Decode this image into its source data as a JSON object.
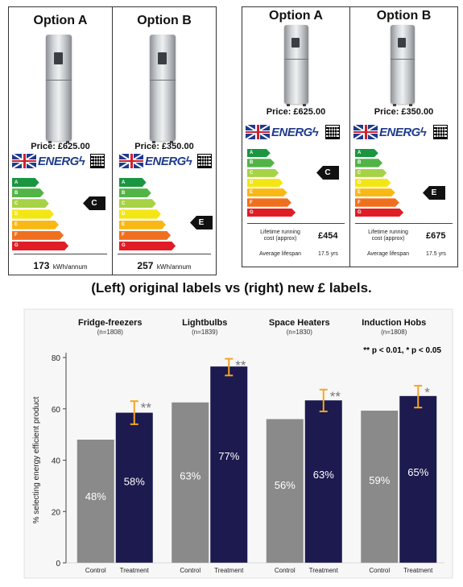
{
  "left_panel": {
    "options": [
      {
        "title": "Option A",
        "price": "Price: £625.00",
        "energy_logo": "ENERG",
        "rating": "C",
        "kwh": "173",
        "kwh_unit": "kWh/annum"
      },
      {
        "title": "Option B",
        "price": "Price: £350.00",
        "energy_logo": "ENERG",
        "rating": "E",
        "kwh": "257",
        "kwh_unit": "kWh/annum"
      }
    ]
  },
  "right_panel": {
    "options": [
      {
        "title": "Option A",
        "price": "Price: £625.00",
        "energy_logo": "ENERG",
        "rating": "C",
        "running_cost_label": "Lifetime running",
        "running_cost_label2": "cost (approx)",
        "running_cost": "£454",
        "lifespan_label": "Average lifespan",
        "lifespan": "17.5 yrs"
      },
      {
        "title": "Option B",
        "price": "Price: £350.00",
        "energy_logo": "ENERG",
        "rating": "E",
        "running_cost_label": "Lifetime running",
        "running_cost_label2": "cost (approx)",
        "running_cost": "£675",
        "lifespan_label": "Average lifespan",
        "lifespan": "17.5 yrs"
      }
    ]
  },
  "energy_classes": [
    "A",
    "B",
    "C",
    "D",
    "E",
    "F",
    "G"
  ],
  "energy_colors": [
    "#1a9641",
    "#52b447",
    "#a6d246",
    "#f4e614",
    "#f9b814",
    "#f06f1e",
    "#e01d26"
  ],
  "caption": "(Left) original labels vs (right) new £ labels.",
  "chart_data": {
    "type": "bar",
    "ylabel": "% selecting energy efficient product",
    "ylim": [
      0,
      80
    ],
    "yticks": [
      0,
      20,
      40,
      60,
      80
    ],
    "significance_note": "** p < 0.01, * p < 0.05",
    "colors": {
      "Control": "#8a8a8a",
      "Treatment": "#1c1a4e",
      "error_bar": "#f5a623"
    },
    "groups": [
      {
        "title": "Fridge-freezers",
        "n": "(n=1808)",
        "control": 48,
        "treatment": 58.5,
        "control_label": "48%",
        "treatment_label": "58%",
        "err_low": 54,
        "err_high": 63,
        "stars": "**"
      },
      {
        "title": "Lightbulbs",
        "n": "(n=1839)",
        "control": 62.5,
        "treatment": 76.5,
        "control_label": "63%",
        "treatment_label": "77%",
        "err_low": 73,
        "err_high": 79.5,
        "stars": "**"
      },
      {
        "title": "Space Heaters",
        "n": "(n=1830)",
        "control": 56,
        "treatment": 63.3,
        "control_label": "56%",
        "treatment_label": "63%",
        "err_low": 59,
        "err_high": 67.5,
        "stars": "**"
      },
      {
        "title": "Induction Hobs",
        "n": "(n=1808)",
        "control": 59.3,
        "treatment": 65,
        "control_label": "59%",
        "treatment_label": "65%",
        "err_low": 60.5,
        "err_high": 69,
        "stars": "*"
      }
    ],
    "x_labels": [
      "Control",
      "Treatment"
    ]
  }
}
